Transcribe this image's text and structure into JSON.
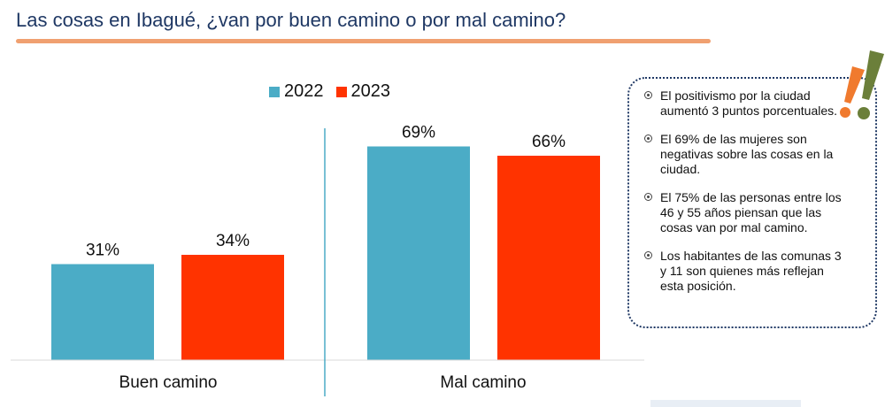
{
  "title": "Las cosas en Ibagué, ¿van por buen camino o por mal camino?",
  "colors": {
    "title": "#1f3864",
    "accent_rule": "#f0a070",
    "series_2022": "#4bacc6",
    "series_2023": "#ff3300",
    "divider": "#4bacc6"
  },
  "chart_data": {
    "type": "bar",
    "categories": [
      "Buen camino",
      "Mal camino"
    ],
    "series": [
      {
        "name": "2022",
        "values": [
          31,
          69
        ],
        "labels": [
          "31%",
          "69%"
        ],
        "color": "#4bacc6"
      },
      {
        "name": "2023",
        "values": [
          34,
          66
        ],
        "labels": [
          "34%",
          "66%"
        ],
        "color": "#ff3300"
      }
    ],
    "ylim": [
      0,
      100
    ],
    "legend": "top",
    "grid": false
  },
  "notes": [
    "El positivismo por la ciudad aumentó 3 puntos porcentuales.",
    "El 69% de las mujeres son negativas sobre las cosas en la ciudad.",
    "El 75% de las personas entre los 46 y 55 años piensan que las cosas van por mal camino.",
    "Los habitantes de las comunas 3 y 11 son quienes más reflejan esta posición."
  ],
  "icons": {
    "note_bullet": "target-bullet-icon",
    "decoration": "exclamation-marks-icon"
  }
}
